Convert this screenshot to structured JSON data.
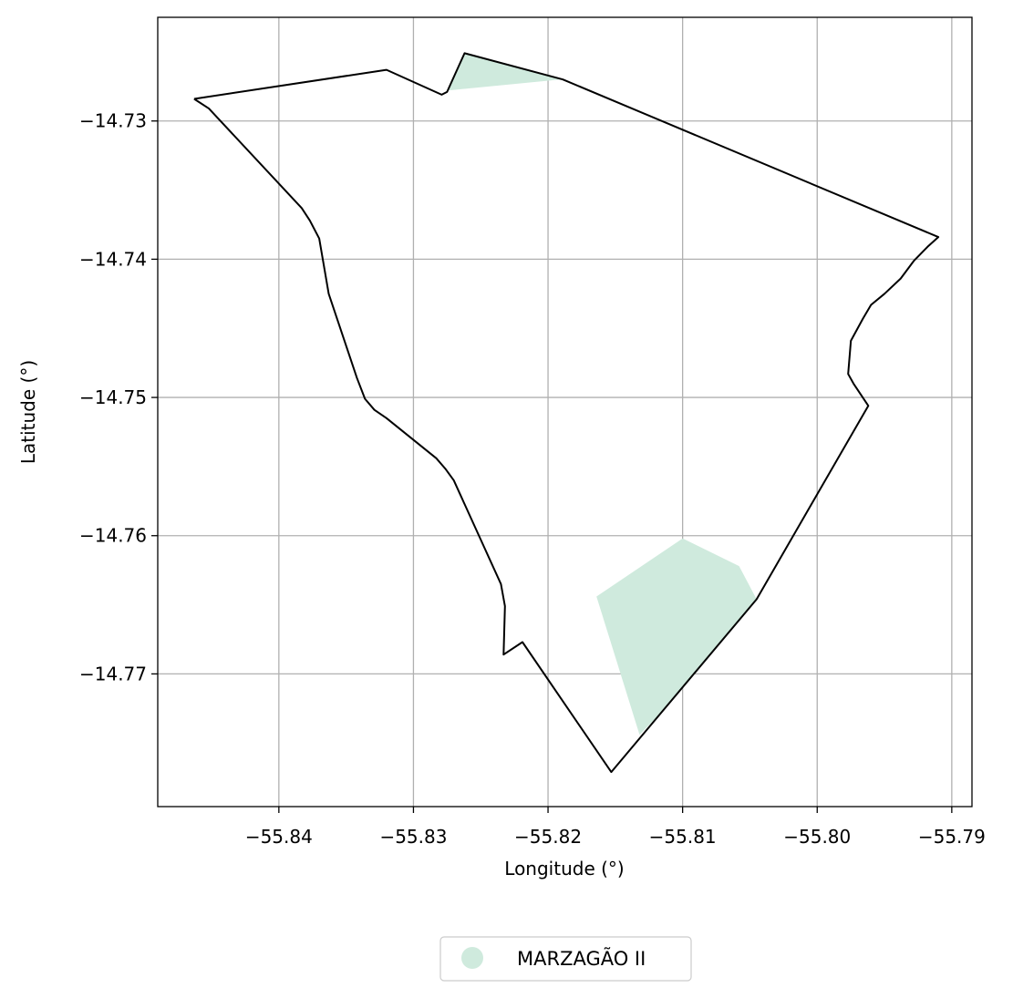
{
  "chart_data": {
    "type": "map",
    "title": "",
    "xlabel": "Longitude (°)",
    "ylabel": "Latitude (°)",
    "xlim": [
      -55.849,
      -55.7885
    ],
    "ylim": [
      -14.7796,
      -14.7225
    ],
    "grid": true,
    "x_ticks": [
      -55.84,
      -55.83,
      -55.82,
      -55.81,
      -55.8,
      -55.79
    ],
    "y_ticks": [
      -14.73,
      -14.74,
      -14.75,
      -14.76,
      -14.77
    ],
    "x_tick_labels": [
      "−55.84",
      "−55.83",
      "−55.82",
      "−55.81",
      "−55.80",
      "−55.79"
    ],
    "y_tick_labels": [
      "−14.73",
      "−14.74",
      "−14.75",
      "−14.76",
      "−14.77"
    ],
    "boundary": {
      "edge_color": "#000000",
      "points": [
        [
          -55.8463,
          -14.7284
        ],
        [
          -55.8452,
          -14.7291
        ],
        [
          -55.8383,
          -14.7363
        ],
        [
          -55.8377,
          -14.7372
        ],
        [
          -55.837,
          -14.7385
        ],
        [
          -55.8363,
          -14.7425
        ],
        [
          -55.8342,
          -14.7486
        ],
        [
          -55.8336,
          -14.7501
        ],
        [
          -55.8329,
          -14.7509
        ],
        [
          -55.832,
          -14.7515
        ],
        [
          -55.8283,
          -14.7544
        ],
        [
          -55.8276,
          -14.7552
        ],
        [
          -55.827,
          -14.756
        ],
        [
          -55.8235,
          -14.7635
        ],
        [
          -55.8232,
          -14.7651
        ],
        [
          -55.8233,
          -14.7686
        ],
        [
          -55.8219,
          -14.7677
        ],
        [
          -55.8153,
          -14.7771
        ],
        [
          -55.8115,
          -14.7727
        ],
        [
          -55.8045,
          -14.7646
        ],
        [
          -55.7962,
          -14.7506
        ],
        [
          -55.7973,
          -14.749
        ],
        [
          -55.7977,
          -14.7483
        ],
        [
          -55.7975,
          -14.7459
        ],
        [
          -55.7966,
          -14.7443
        ],
        [
          -55.796,
          -14.7433
        ],
        [
          -55.795,
          -14.7425
        ],
        [
          -55.7938,
          -14.7414
        ],
        [
          -55.7928,
          -14.7401
        ],
        [
          -55.7918,
          -14.7391
        ],
        [
          -55.791,
          -14.7384
        ],
        [
          -55.8189,
          -14.727
        ],
        [
          -55.8262,
          -14.7251
        ],
        [
          -55.8275,
          -14.7279
        ],
        [
          -55.8279,
          -14.7281
        ],
        [
          -55.832,
          -14.7263
        ],
        [
          -55.8463,
          -14.7284
        ]
      ]
    },
    "series": [
      {
        "name": "MARZAGÃO II",
        "color": "#cfeadd",
        "polygons": [
          [
            [
              -55.8262,
              -14.7251
            ],
            [
              -55.8191,
              -14.727
            ],
            [
              -55.8275,
              -14.7278
            ]
          ],
          [
            [
              -55.81,
              -14.7602
            ],
            [
              -55.8058,
              -14.7622
            ],
            [
              -55.8045,
              -14.7646
            ],
            [
              -55.8115,
              -14.7727
            ],
            [
              -55.8132,
              -14.7744
            ],
            [
              -55.8164,
              -14.7644
            ]
          ]
        ]
      }
    ],
    "legend": {
      "position": "bottom-center",
      "entries": [
        "MARZAGÃO II"
      ]
    }
  }
}
